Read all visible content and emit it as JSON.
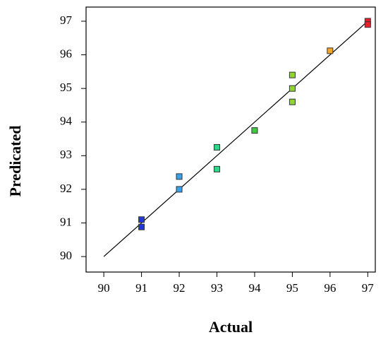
{
  "chart_data": {
    "type": "scatter",
    "x_label": "Actual",
    "y_label": "Predicated",
    "x": [
      97,
      97,
      96,
      95,
      95,
      95,
      94,
      93,
      93,
      92,
      92,
      91,
      91
    ],
    "values": [
      97.0,
      96.9,
      96.12,
      95.4,
      95.0,
      94.6,
      93.75,
      93.25,
      92.6,
      92.38,
      92.0,
      91.1,
      90.88
    ],
    "colors": [
      "#e8202a",
      "#e8202a",
      "#f5a623",
      "#8fd82a",
      "#8fd82a",
      "#8fd82a",
      "#3ccc3c",
      "#2ed88a",
      "#2ed88a",
      "#3aa0e8",
      "#3aa0e8",
      "#2436e0",
      "#2436e0"
    ],
    "reference_line": {
      "x": [
        90,
        97
      ],
      "y": [
        90,
        97
      ]
    },
    "xlim": [
      89.53,
      97.2
    ],
    "ylim": [
      89.54,
      97.42
    ],
    "xticks": [
      90,
      91,
      92,
      93,
      94,
      95,
      96,
      97
    ],
    "yticks": [
      90,
      91,
      92,
      93,
      94,
      95,
      96,
      97
    ]
  }
}
